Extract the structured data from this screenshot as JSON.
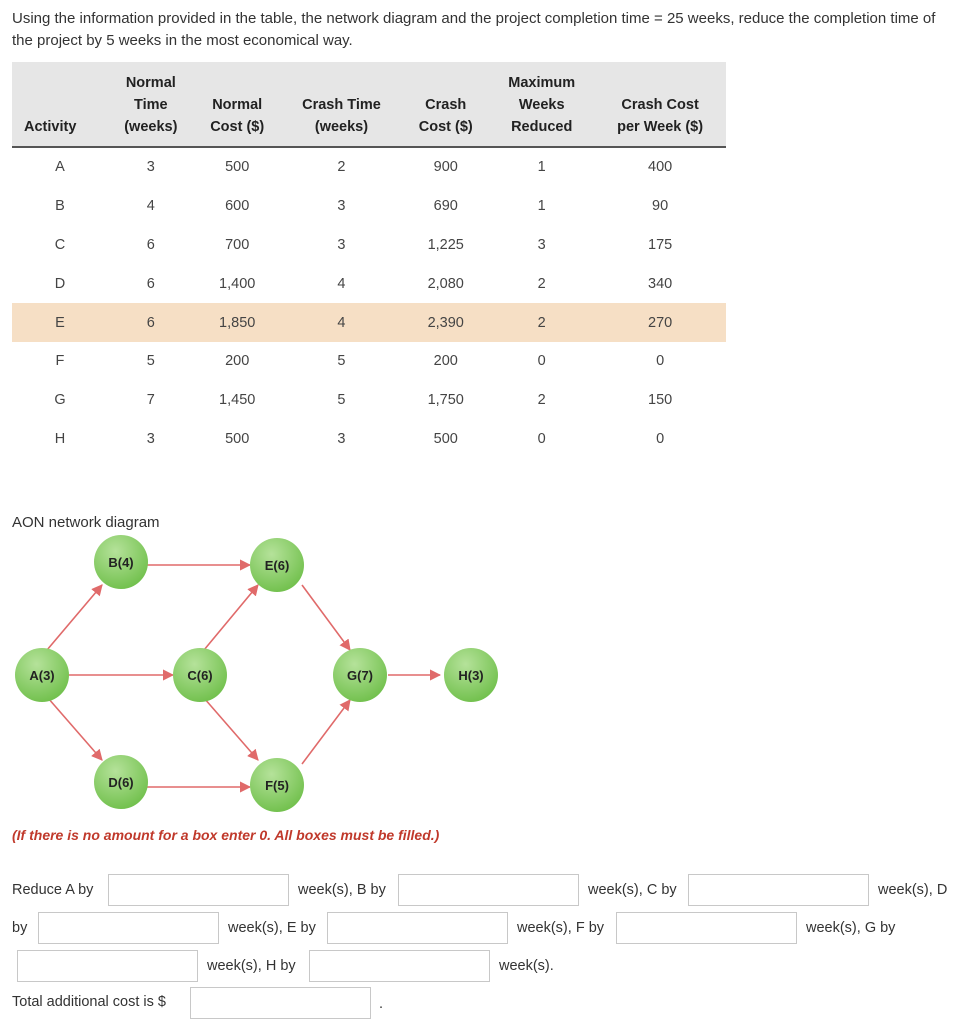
{
  "question": {
    "text": "Using the information provided in the table, the network diagram and the project completion time = 25 weeks, reduce the completion time of the project by 5 weeks in the most economical way."
  },
  "table": {
    "headers": {
      "activity": [
        "Activity"
      ],
      "normal_time": [
        "Normal",
        "Time",
        "(weeks)"
      ],
      "normal_cost": [
        "Normal",
        "Cost ($)"
      ],
      "crash_time": [
        "Crash Time",
        "(weeks)"
      ],
      "crash_cost": [
        "Crash",
        "Cost ($)"
      ],
      "max_weeks": [
        "Maximum",
        "Weeks",
        "Reduced"
      ],
      "crash_per_week": [
        "Crash Cost",
        "per Week ($)"
      ]
    },
    "rows": [
      [
        "A",
        "3",
        "500",
        "2",
        "900",
        "1",
        "400"
      ],
      [
        "B",
        "4",
        "600",
        "3",
        "690",
        "1",
        "90"
      ],
      [
        "C",
        "6",
        "700",
        "3",
        "1,225",
        "3",
        "175"
      ],
      [
        "D",
        "6",
        "1,400",
        "4",
        "2,080",
        "2",
        "340"
      ],
      [
        "E",
        "6",
        "1,850",
        "4",
        "2,390",
        "2",
        "270"
      ],
      [
        "F",
        "5",
        "200",
        "5",
        "200",
        "0",
        "0"
      ],
      [
        "G",
        "7",
        "1,450",
        "5",
        "1,750",
        "2",
        "150"
      ],
      [
        "H",
        "3",
        "500",
        "3",
        "500",
        "0",
        "0"
      ]
    ]
  },
  "diagram": {
    "title": "AON network diagram",
    "nodes": {
      "A": "A(3)",
      "B": "B(4)",
      "C": "C(6)",
      "D": "D(6)",
      "E": "E(6)",
      "F": "F(5)",
      "G": "G(7)",
      "H": "H(3)"
    },
    "colors": {
      "node_fill": "#6fbf4a",
      "node_light": "#b5e29a",
      "arrow": "#e06a6a"
    }
  },
  "note": "(If there is no amount for a box enter 0. All boxes must be filled.)",
  "form": {
    "reduce_a": "Reduce A by",
    "b_by": "week(s), B by",
    "c_by": "week(s), C by",
    "d_by": "week(s), D",
    "by": "by",
    "e_by": "week(s), E by",
    "f_by": "week(s), F by",
    "g_by": "week(s), G by",
    "h_by": "week(s), H by",
    "weeks_end": "week(s).",
    "total_cost": "Total additional cost is $",
    "period": "."
  }
}
